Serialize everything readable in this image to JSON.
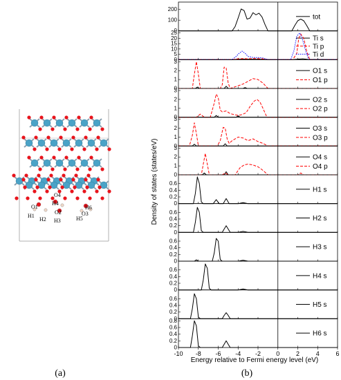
{
  "panel_labels": {
    "a": "(a)",
    "b": "(b)"
  },
  "structure": {
    "atom_colors": {
      "Ti": "#4ba3c7",
      "O": "#e8141c",
      "H": "#f0d8c8"
    },
    "labels": [
      "O1",
      "H1",
      "H2",
      "O2",
      "H3",
      "O4",
      "H4",
      "H5",
      "O3",
      "H6"
    ]
  },
  "chart_data": {
    "type": "line",
    "xlabel": "Energy relative to Fermi energy level (eV)",
    "ylabel": "Density of states (states/eV)",
    "xlim": [
      -10,
      6
    ],
    "x_ticks": [
      -10,
      -8,
      -6,
      -4,
      -2,
      0,
      2,
      4,
      6
    ],
    "fermi_level": 0,
    "colors": {
      "s": "#000000",
      "p": "#ff0000",
      "d": "#0000ff"
    },
    "panels": [
      {
        "id": "tot",
        "ylim": [
          0,
          250
        ],
        "yticks": [
          0,
          100,
          200
        ],
        "series": [
          {
            "name": "tot",
            "style": "solid",
            "color": "#000000",
            "x": [
              -10,
              -4.6,
              -4.3,
              -4.0,
              -3.7,
              -3.4,
              -3.1,
              -2.8,
              -2.5,
              -2.2,
              -1.9,
              -1.6,
              -1.3,
              -1.0,
              1.4,
              1.7,
              2.0,
              2.3,
              2.6,
              2.9,
              3.2,
              6
            ],
            "y": [
              0,
              0,
              40,
              120,
              205,
              190,
              110,
              120,
              170,
              150,
              165,
              130,
              60,
              0,
              0,
              50,
              95,
              110,
              95,
              50,
              0,
              0
            ]
          }
        ]
      },
      {
        "id": "Ti",
        "ylim": [
          0,
          25
        ],
        "yticks": [
          0,
          5,
          10,
          15,
          20,
          25
        ],
        "series": [
          {
            "name": "Ti s",
            "style": "solid",
            "color": "#000000",
            "x": [
              -10,
              -4.6,
              -4.0,
              -3.5,
              -2.5,
              -1.5,
              -1.0,
              1.5,
              2.0,
              2.5,
              3.0,
              6
            ],
            "y": [
              0,
              0,
              0.3,
              0.5,
              0.4,
              0.3,
              0,
              0,
              0.5,
              0.8,
              0.3,
              0
            ]
          },
          {
            "name": "Ti p",
            "style": "dashed",
            "color": "#ff0000",
            "x": [
              -10,
              -4.6,
              -4.0,
              -3.5,
              -3.0,
              -2.5,
              -2.0,
              -1.5,
              -1.0,
              1.5,
              1.9,
              2.1,
              2.3,
              2.6,
              2.9,
              3.2,
              6
            ],
            "y": [
              0,
              0,
              0.8,
              1.0,
              0.8,
              1.1,
              0.9,
              0.7,
              0,
              0,
              6,
              20,
              24,
              20,
              8,
              0,
              0
            ]
          },
          {
            "name": "Ti d",
            "style": "dotted",
            "color": "#0000ff",
            "x": [
              -10,
              -4.6,
              -4.2,
              -3.9,
              -3.6,
              -3.3,
              -3.0,
              -2.5,
              -2.0,
              -1.5,
              -1.0,
              1.3,
              1.6,
              1.9,
              2.2,
              2.5,
              2.8,
              3.1,
              6
            ],
            "y": [
              0,
              0,
              3,
              6,
              8,
              6,
              3,
              2,
              2,
              1.5,
              0,
              0,
              8,
              22,
              25,
              18,
              8,
              0,
              0
            ]
          }
        ]
      },
      {
        "id": "O1",
        "ylim": [
          0,
          3
        ],
        "yticks": [
          0,
          1,
          2,
          3
        ],
        "series": [
          {
            "name": "O1 s",
            "style": "solid",
            "color": "#000000",
            "x": [
              -10,
              -8.3,
              -8.1,
              -7.9,
              -5.4,
              -5.2,
              -5.0,
              -3.5,
              -3.3,
              -3.1,
              6
            ],
            "y": [
              0,
              0,
              0.15,
              0,
              0,
              0.25,
              0,
              0,
              0.1,
              0,
              0
            ]
          },
          {
            "name": "O1 p",
            "style": "dashed",
            "color": "#ff0000",
            "x": [
              -10,
              -8.6,
              -8.4,
              -8.2,
              -8.0,
              -7.8,
              -5.8,
              -5.6,
              -5.4,
              -5.2,
              -5.0,
              -4.8,
              -4.0,
              -3.5,
              -3.0,
              -2.5,
              -2.0,
              -1.5,
              -1.0,
              6
            ],
            "y": [
              0,
              0,
              1.6,
              3.0,
              1.6,
              0,
              0,
              0.4,
              2.4,
              2.3,
              0.6,
              0,
              0.3,
              0.5,
              0.8,
              1.1,
              1.0,
              0.6,
              0,
              0
            ]
          }
        ]
      },
      {
        "id": "O2",
        "ylim": [
          0,
          3
        ],
        "yticks": [
          0,
          1,
          2,
          3
        ],
        "series": [
          {
            "name": "O2 s",
            "style": "solid",
            "color": "#000000",
            "x": [
              -10,
              -6.4,
              -6.2,
              -6.0,
              -4.2,
              -4.0,
              -3.8,
              6
            ],
            "y": [
              0,
              0,
              0.2,
              0,
              0,
              0.15,
              0,
              0
            ]
          },
          {
            "name": "O2 p",
            "style": "dashed",
            "color": "#ff0000",
            "x": [
              -10,
              -8.2,
              -7.8,
              -7.4,
              -6.8,
              -6.4,
              -6.2,
              -6.0,
              -5.8,
              -5.6,
              -5.2,
              -4.8,
              -4.4,
              -4.0,
              -3.6,
              -3.2,
              -2.8,
              -2.4,
              -2.1,
              -1.8,
              -1.5,
              -1.1,
              6
            ],
            "y": [
              0,
              0,
              0.35,
              0,
              0,
              1.6,
              2.6,
              2.2,
              0.8,
              0.6,
              0.7,
              0.4,
              0.3,
              0.2,
              0.3,
              0.5,
              1.2,
              1.8,
              2.0,
              1.7,
              1.0,
              0,
              0
            ]
          }
        ]
      },
      {
        "id": "O3",
        "ylim": [
          0,
          3
        ],
        "yticks": [
          0,
          1,
          2,
          3
        ],
        "series": [
          {
            "name": "O3 s",
            "style": "solid",
            "color": "#000000",
            "x": [
              -10,
              -8.6,
              -8.4,
              -8.2,
              -5.5,
              -5.3,
              -5.1,
              6
            ],
            "y": [
              0,
              0,
              0.2,
              0,
              0,
              0.25,
              0,
              0
            ]
          },
          {
            "name": "O3 p",
            "style": "dashed",
            "color": "#ff0000",
            "x": [
              -10,
              -8.9,
              -8.6,
              -8.4,
              -8.2,
              -8.0,
              -6.1,
              -5.8,
              -5.5,
              -5.3,
              -5.1,
              -4.9,
              -4.6,
              -4.0,
              -3.5,
              -3.0,
              -2.5,
              -2.0,
              -1.5,
              -1.0,
              6
            ],
            "y": [
              0,
              0,
              1.2,
              2.6,
              1.4,
              0,
              0,
              0.6,
              2.1,
              2.0,
              0.8,
              0.3,
              0.6,
              1.0,
              0.9,
              0.6,
              0.8,
              0.5,
              0.3,
              0,
              0
            ]
          }
        ]
      },
      {
        "id": "O4",
        "ylim": [
          0,
          3
        ],
        "yticks": [
          0,
          1,
          2,
          3
        ],
        "series": [
          {
            "name": "O4 s",
            "style": "solid",
            "color": "#000000",
            "x": [
              -10,
              -7.6,
              -7.4,
              -7.2,
              -5.4,
              -5.2,
              -5.0,
              6
            ],
            "y": [
              0,
              0,
              0.2,
              0,
              0,
              0.35,
              0,
              0
            ]
          },
          {
            "name": "O4 p",
            "style": "dashed",
            "color": "#ff0000",
            "x": [
              -10,
              -7.7,
              -7.5,
              -7.3,
              -7.1,
              -6.9,
              -5.6,
              -5.3,
              -5.0,
              -4.3,
              -3.8,
              -3.4,
              -3.0,
              -2.5,
              -2.0,
              -1.5,
              -1.0,
              2.0,
              2.3,
              2.6,
              6
            ],
            "y": [
              0,
              0,
              1.2,
              2.4,
              1.2,
              0,
              0,
              0.2,
              0,
              0,
              0.8,
              1.1,
              1.2,
              1.1,
              0.9,
              0.5,
              0,
              0,
              0.2,
              0,
              0
            ]
          }
        ]
      },
      {
        "id": "H1",
        "ylim": [
          0,
          0.8
        ],
        "yticks": [
          0,
          0.2,
          0.4,
          0.6
        ],
        "series": [
          {
            "name": "H1 s",
            "style": "solid",
            "color": "#000000",
            "x": [
              -10,
              -8.5,
              -8.3,
              -8.1,
              -7.9,
              -7.7,
              -7.5,
              -6.5,
              -6.2,
              -5.9,
              -5.5,
              -5.2,
              -4.9,
              -4.0,
              -3.5,
              -3.0,
              6
            ],
            "y": [
              0,
              0,
              0.3,
              0.8,
              0.6,
              0.05,
              0,
              0,
              0.12,
              0,
              0,
              0.15,
              0,
              0,
              0.03,
              0,
              0
            ]
          }
        ]
      },
      {
        "id": "H2",
        "ylim": [
          0,
          0.8
        ],
        "yticks": [
          0,
          0.2,
          0.4,
          0.6
        ],
        "series": [
          {
            "name": "H2 s",
            "style": "solid",
            "color": "#000000",
            "x": [
              -10,
              -8.5,
              -8.3,
              -8.1,
              -7.9,
              -7.7,
              -7.5,
              -5.6,
              -5.4,
              -5.2,
              -5.0,
              -4.8,
              -4.0,
              -3.5,
              -3.0,
              6
            ],
            "y": [
              0,
              0,
              0.3,
              0.75,
              0.6,
              0.05,
              0,
              0,
              0.1,
              0.2,
              0.1,
              0,
              0,
              0.03,
              0,
              0
            ]
          }
        ]
      },
      {
        "id": "H3",
        "ylim": [
          0,
          0.8
        ],
        "yticks": [
          0,
          0.2,
          0.4,
          0.6
        ],
        "series": [
          {
            "name": "H3 s",
            "style": "solid",
            "color": "#000000",
            "x": [
              -10,
              -8.4,
              -8.2,
              -8.0,
              -6.6,
              -6.4,
              -6.2,
              -6.0,
              -5.8,
              -5.6,
              -4.0,
              -3.5,
              -3.0,
              6
            ],
            "y": [
              0,
              0,
              0.04,
              0,
              0,
              0.25,
              0.68,
              0.6,
              0.05,
              0,
              0,
              0.03,
              0,
              0
            ]
          }
        ]
      },
      {
        "id": "H4",
        "ylim": [
          0,
          0.8
        ],
        "yticks": [
          0,
          0.2,
          0.4,
          0.6
        ],
        "series": [
          {
            "name": "H4 s",
            "style": "solid",
            "color": "#000000",
            "x": [
              -10,
              -7.7,
              -7.5,
              -7.3,
              -7.1,
              -6.9,
              -6.7,
              -4.0,
              -3.5,
              -3.0,
              6
            ],
            "y": [
              0,
              0,
              0.3,
              0.78,
              0.65,
              0.05,
              0,
              0,
              0.03,
              0,
              0
            ]
          }
        ]
      },
      {
        "id": "H5",
        "ylim": [
          0,
          0.8
        ],
        "yticks": [
          0,
          0.2,
          0.4,
          0.6
        ],
        "series": [
          {
            "name": "H5 s",
            "style": "solid",
            "color": "#000000",
            "x": [
              -10,
              -8.8,
              -8.6,
              -8.4,
              -8.2,
              -8.0,
              -7.8,
              -5.6,
              -5.4,
              -5.2,
              -5.0,
              -4.8,
              6
            ],
            "y": [
              0,
              0,
              0.3,
              0.75,
              0.6,
              0.05,
              0,
              0,
              0.1,
              0.18,
              0.1,
              0,
              0
            ]
          }
        ]
      },
      {
        "id": "H6",
        "ylim": [
          0,
          0.8
        ],
        "yticks": [
          0,
          0.2,
          0.4,
          0.6,
          0.8
        ],
        "series": [
          {
            "name": "H6 s",
            "style": "solid",
            "color": "#000000",
            "x": [
              -10,
              -8.8,
              -8.6,
              -8.4,
              -8.2,
              -8.0,
              -7.8,
              -5.6,
              -5.4,
              -5.2,
              -5.0,
              -4.8,
              6
            ],
            "y": [
              0,
              0,
              0.35,
              0.8,
              0.65,
              0.05,
              0,
              0,
              0.1,
              0.2,
              0.1,
              0,
              0
            ]
          }
        ]
      }
    ]
  }
}
